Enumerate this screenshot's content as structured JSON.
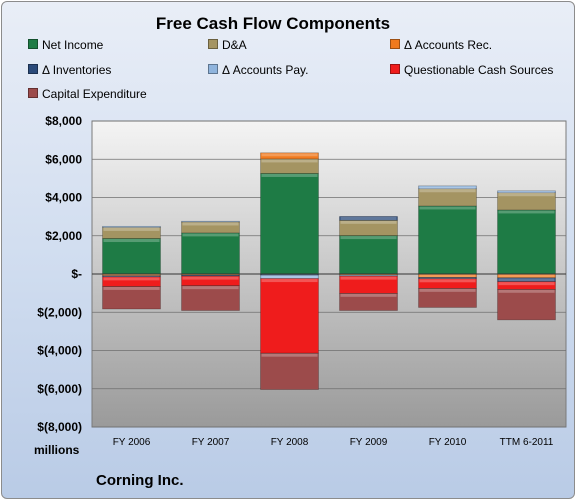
{
  "chart_data": {
    "type": "bar",
    "stacked": true,
    "title": "Free Cash Flow Components",
    "categories": [
      "FY 2006",
      "FY 2007",
      "FY 2008",
      "FY 2009",
      "FY 2010",
      "TTM 6-2011"
    ],
    "ylim": [
      -8000,
      8000
    ],
    "ytick_values": [
      -8000,
      -6000,
      -4000,
      -2000,
      0,
      2000,
      4000,
      6000,
      8000
    ],
    "ytick_labels": [
      "$(8,000)",
      "$(6,000)",
      "$(4,000)",
      "$(2,000)",
      "$-",
      "$2,000",
      "$4,000",
      "$6,000",
      "$8,000"
    ],
    "unit_label": "millions",
    "grid": true,
    "legend_position": "top",
    "series": [
      {
        "name": "Net Income",
        "color": "#1e7b45",
        "values": [
          1855,
          2150,
          5257,
          2008,
          3558,
          3350
        ]
      },
      {
        "name": "D&A",
        "color": "#a49462",
        "values": [
          580,
          570,
          760,
          800,
          900,
          900
        ]
      },
      {
        "name": "Δ Accounts Rec.",
        "color": "#f07a1e",
        "values": [
          -90,
          -60,
          320,
          -60,
          -180,
          -200
        ]
      },
      {
        "name": "Δ Inventories",
        "color": "#2a4a7a",
        "values": [
          -60,
          -50,
          -60,
          200,
          -70,
          -200
        ]
      },
      {
        "name": "Δ Accounts Pay.",
        "color": "#8fb4dd",
        "values": [
          60,
          40,
          -180,
          -50,
          150,
          100
        ]
      },
      {
        "name": "Questionable Cash Sources",
        "color": "#ef1c1c",
        "values": [
          -500,
          -500,
          -3900,
          -900,
          -500,
          -400
        ]
      },
      {
        "name": "Capital Expenditure",
        "color": "#9c4b4b",
        "values": [
          -1180,
          -1300,
          -1900,
          -900,
          -1000,
          -1600
        ]
      }
    ]
  },
  "footer": {
    "units": "millions",
    "company": "Corning Inc."
  }
}
